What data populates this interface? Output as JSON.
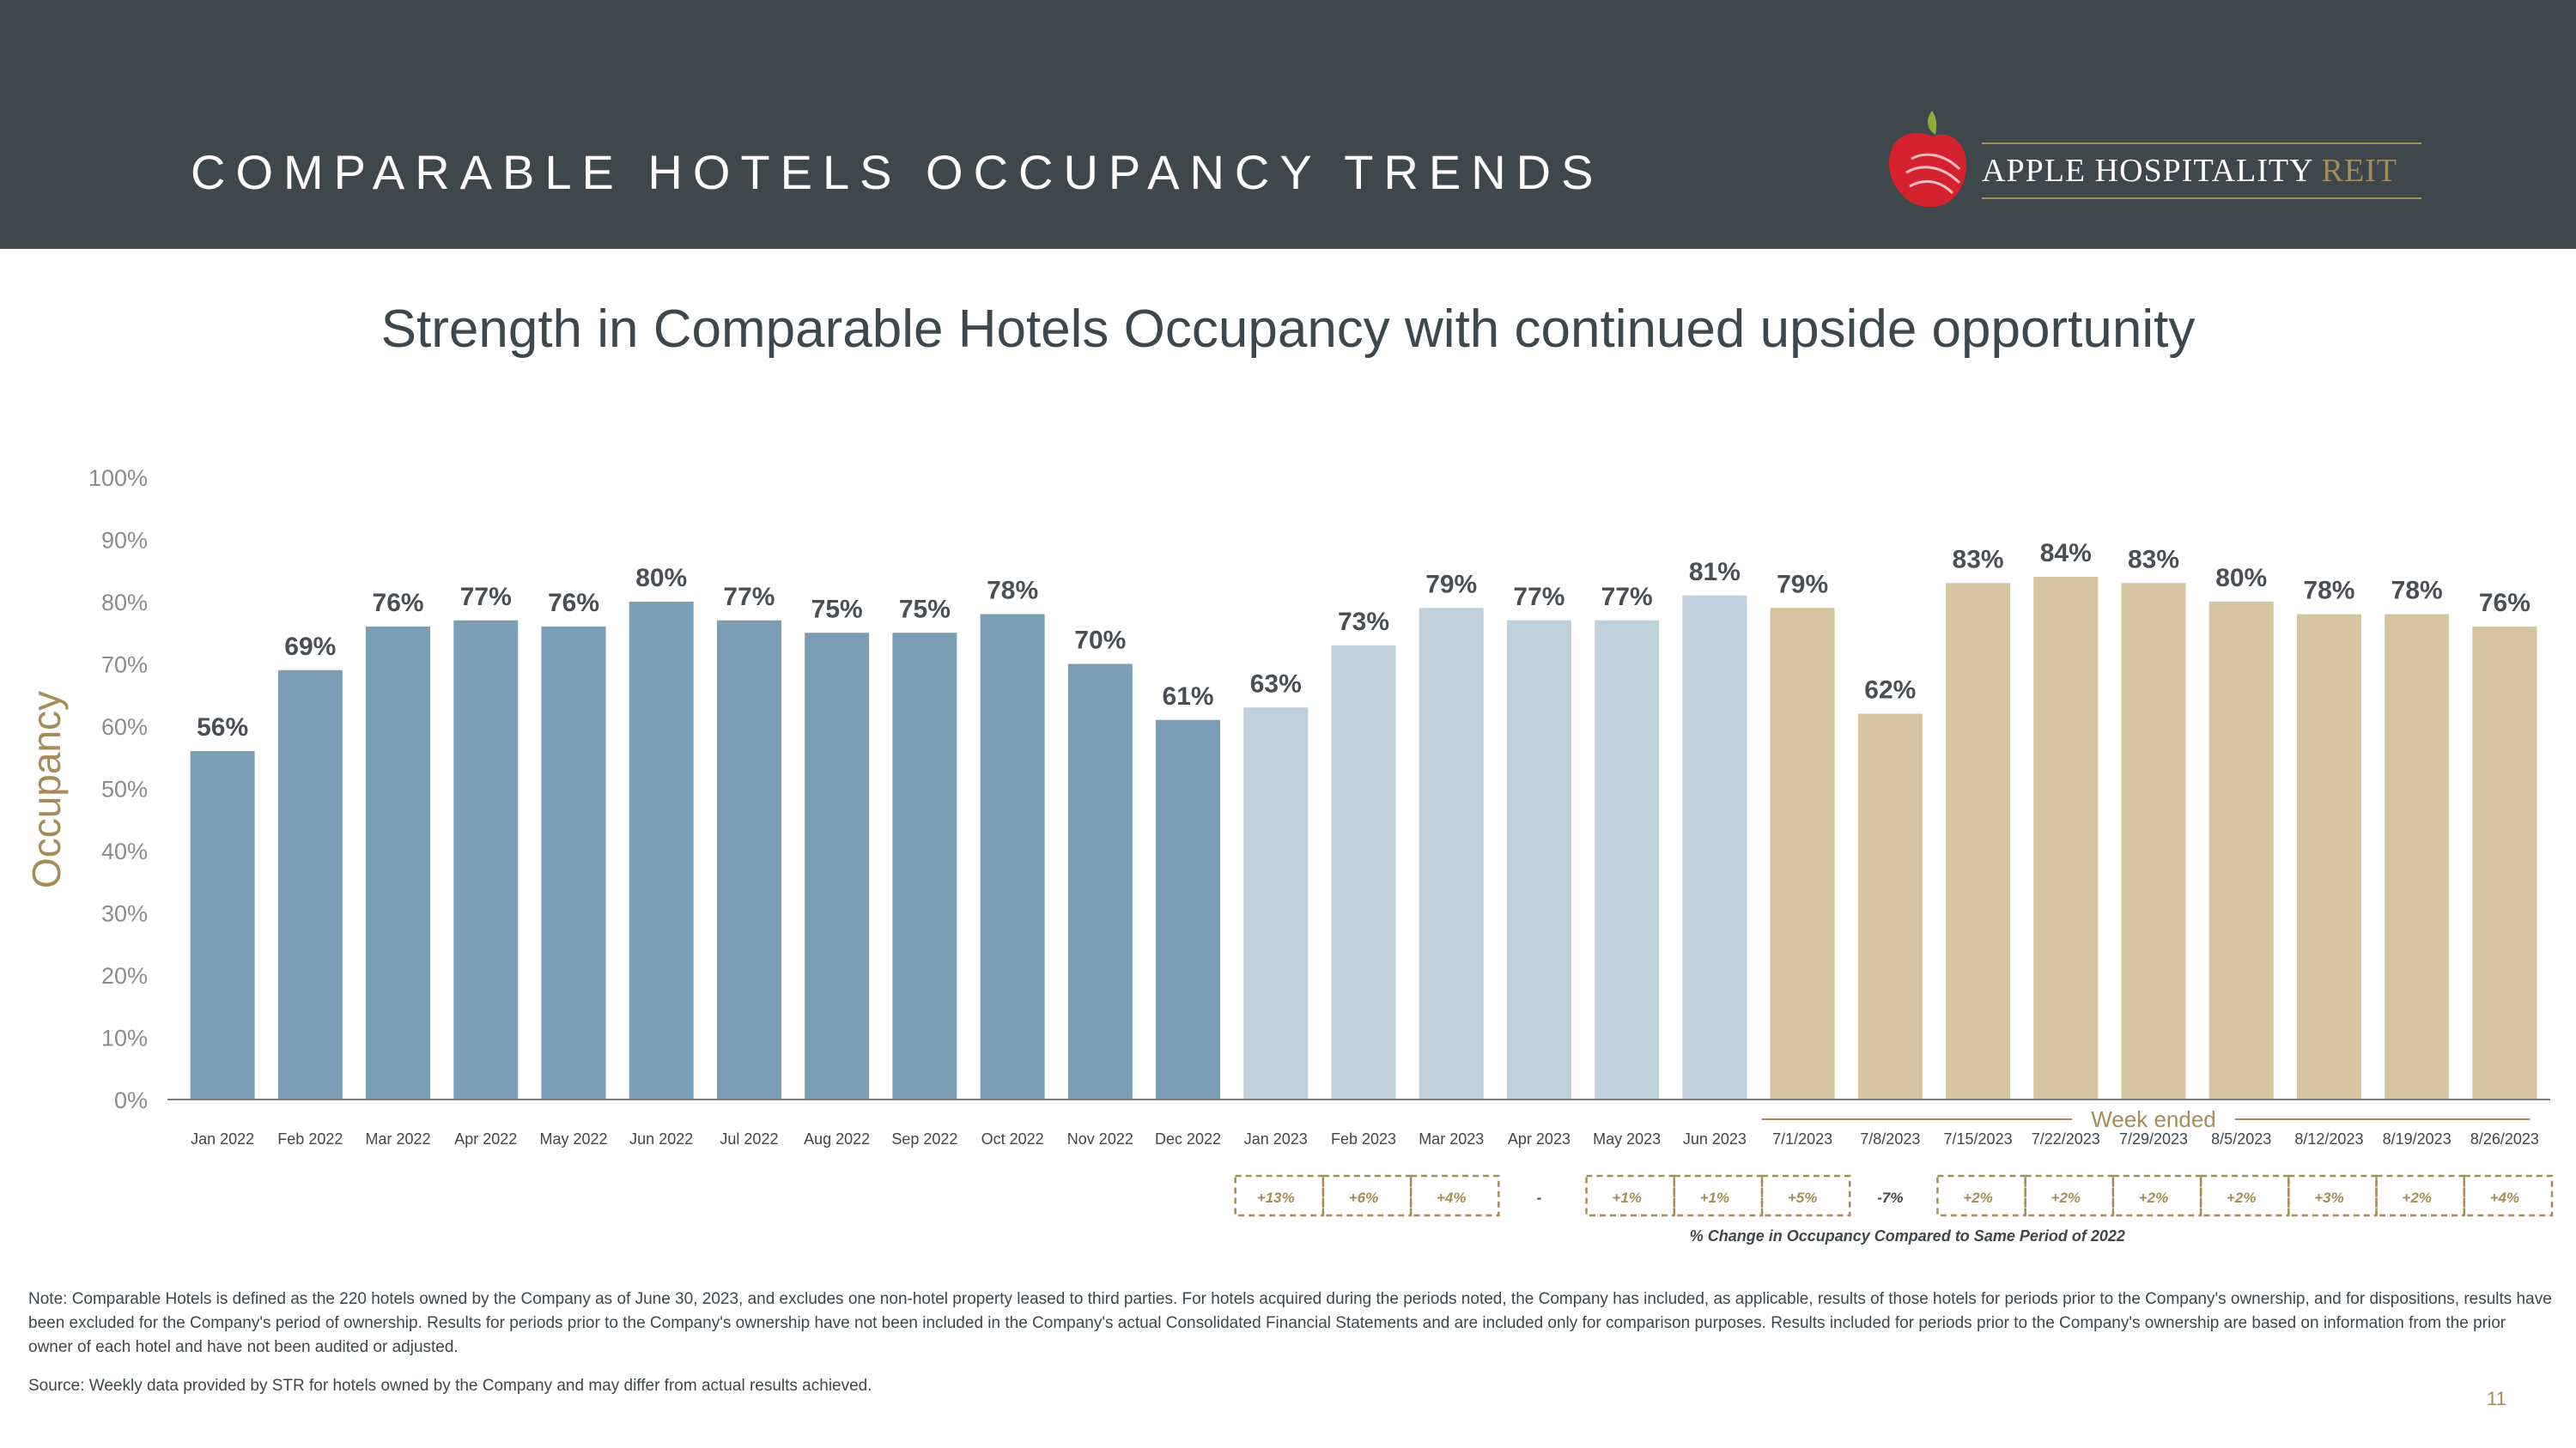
{
  "header": {
    "title": "COMPARABLE HOTELS OCCUPANCY TRENDS",
    "logo_text_main": "APPLE HOSPITALITY ",
    "logo_text_accent": "REIT"
  },
  "subtitle": "Strength in Comparable Hotels Occupancy with continued upside opportunity",
  "colors": {
    "header_bg": "#3e474b",
    "series_2022": "#7b9db5",
    "series_2023_monthly": "#bfd0da",
    "series_2023_weekly": "#d4c4a0",
    "gold_accent": "#a48d58",
    "logo_red": "#d5222f",
    "logo_green": "#8dac3a"
  },
  "chart_data": {
    "type": "bar",
    "ylabel": "Occupancy",
    "ylim": [
      0,
      100
    ],
    "yticks": [
      "0%",
      "10%",
      "20%",
      "30%",
      "40%",
      "50%",
      "60%",
      "70%",
      "80%",
      "90%",
      "100%"
    ],
    "grid": false,
    "categories": [
      "Jan 2022",
      "Feb 2022",
      "Mar 2022",
      "Apr 2022",
      "May 2022",
      "Jun 2022",
      "Jul 2022",
      "Aug 2022",
      "Sep 2022",
      "Oct 2022",
      "Nov 2022",
      "Dec 2022",
      "Jan 2023",
      "Feb 2023",
      "Mar 2023",
      "Apr 2023",
      "May 2023",
      "Jun 2023",
      "7/1/2023",
      "7/8/2023",
      "7/15/2023",
      "7/22/2023",
      "7/29/2023",
      "8/5/2023",
      "8/12/2023",
      "8/19/2023",
      "8/26/2023"
    ],
    "values": [
      56,
      69,
      76,
      77,
      76,
      80,
      77,
      75,
      75,
      78,
      70,
      61,
      63,
      73,
      79,
      77,
      77,
      81,
      79,
      62,
      83,
      84,
      83,
      80,
      78,
      78,
      76
    ],
    "value_labels": [
      "56%",
      "69%",
      "76%",
      "77%",
      "76%",
      "80%",
      "77%",
      "75%",
      "75%",
      "78%",
      "70%",
      "61%",
      "63%",
      "73%",
      "79%",
      "77%",
      "77%",
      "81%",
      "79%",
      "62%",
      "83%",
      "84%",
      "83%",
      "80%",
      "78%",
      "78%",
      "76%"
    ],
    "groups": [
      "2022",
      "2022",
      "2022",
      "2022",
      "2022",
      "2022",
      "2022",
      "2022",
      "2022",
      "2022",
      "2022",
      "2022",
      "2023m",
      "2023m",
      "2023m",
      "2023m",
      "2023m",
      "2023m",
      "week",
      "week",
      "week",
      "week",
      "week",
      "week",
      "week",
      "week",
      "week"
    ],
    "week_ended_label": "Week ended",
    "change_vs_2022": {
      "label": "% Change in Occupancy Compared to Same Period of 2022",
      "values": [
        "+13%",
        "+6%",
        "+4%",
        "-",
        "+1%",
        "+1%",
        "+5%",
        "-7%",
        "+2%",
        "+2%",
        "+2%",
        "+2%",
        "+3%",
        "+2%",
        "+4%"
      ]
    }
  },
  "footer": {
    "note": "Note:  Comparable Hotels is defined as the 220 hotels owned by the Company as of June 30, 2023, and excludes one non-hotel property leased to third parties. For hotels acquired during the periods noted, the Company has included, as applicable, results of those hotels for periods prior to the Company's ownership, and for dispositions, results have been excluded for the Company's period of ownership. Results for periods prior to the Company's ownership have not been included in the Company's actual Consolidated Financial Statements and are included only for comparison purposes. Results included for periods prior to the Company's ownership are based on information from the prior owner of each hotel and have not been audited or adjusted.",
    "source": "Source:  Weekly data provided by STR for hotels owned by the Company and may differ from actual results achieved.",
    "page_number": "11"
  }
}
